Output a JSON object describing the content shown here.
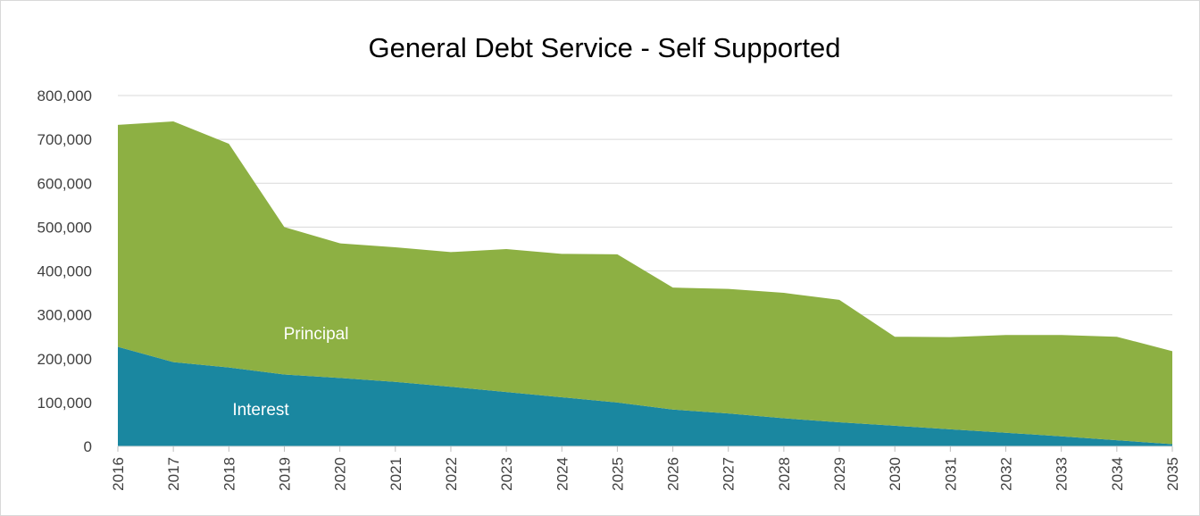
{
  "chart_data": {
    "type": "area",
    "stacked": true,
    "title": "General Debt Service - Self Supported",
    "xlabel": "",
    "ylabel": "",
    "x": [
      2016,
      2017,
      2018,
      2019,
      2020,
      2021,
      2022,
      2023,
      2024,
      2025,
      2026,
      2027,
      2028,
      2029,
      2030,
      2031,
      2032,
      2033,
      2034,
      2035
    ],
    "ylim": [
      0,
      800000
    ],
    "y_ticks": [
      0,
      100000,
      200000,
      300000,
      400000,
      500000,
      600000,
      700000,
      800000
    ],
    "y_tick_labels": [
      "0",
      "100,000",
      "200,000",
      "300,000",
      "400,000",
      "500,000",
      "600,000",
      "700,000",
      "800,000"
    ],
    "grid": true,
    "legend": "none",
    "series": [
      {
        "name": "Interest",
        "color": "#1a87a0",
        "values": [
          227000,
          192000,
          180000,
          164000,
          156000,
          147000,
          136000,
          124000,
          112000,
          100000,
          84000,
          75000,
          64000,
          55000,
          47000,
          39000,
          31000,
          23000,
          14000,
          5000
        ]
      },
      {
        "name": "Principal",
        "color": "#8db043",
        "values": [
          506000,
          549000,
          510000,
          336000,
          307000,
          307000,
          307000,
          326000,
          327000,
          338000,
          278000,
          284000,
          286000,
          279000,
          203000,
          210000,
          223000,
          231000,
          236000,
          212000
        ]
      }
    ]
  }
}
